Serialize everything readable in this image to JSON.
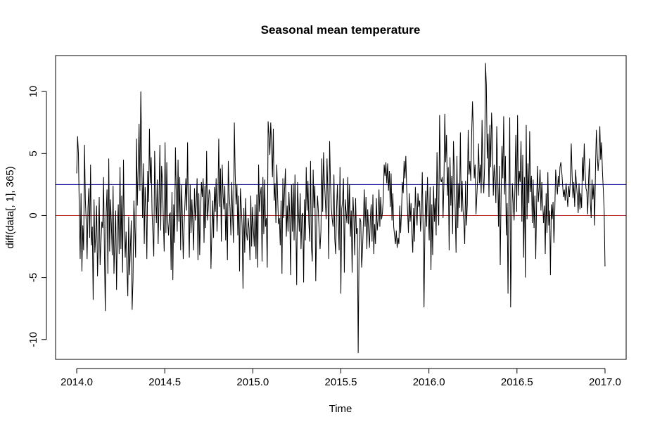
{
  "chart_data": {
    "type": "line",
    "title": "Seasonal mean temperature",
    "xlabel": "Time",
    "ylabel": "diff(data[, 1], 365)",
    "xlim": [
      2013.88,
      2017.12
    ],
    "ylim": [
      -11.6,
      12.9
    ],
    "x_ticks": [
      2014.0,
      2014.5,
      2015.0,
      2015.5,
      2016.0,
      2016.5,
      2017.0
    ],
    "x_tick_labels": [
      "2014.0",
      "2014.5",
      "2015.0",
      "2015.5",
      "2016.0",
      "2016.5",
      "2017.0"
    ],
    "y_ticks": [
      -10,
      -5,
      0,
      5,
      10
    ],
    "y_tick_labels": [
      "-10",
      "-5",
      "0",
      "5",
      "10"
    ],
    "grid": false,
    "legend": "none",
    "series": [
      {
        "color": "#000000",
        "x_start": 2014.0,
        "x_step": 0.00273973,
        "values": [
          3.4,
          6.4,
          5.0,
          0.3,
          -3.5,
          1.8,
          -4.5,
          -0.8,
          -2.8,
          5.7,
          1.2,
          -0.5,
          -3.5,
          0.6,
          2.2,
          -1.8,
          4.1,
          -2.4,
          -0.9,
          -6.8,
          1.3,
          -3.0,
          -1.5,
          0.8,
          -4.9,
          -2.0,
          1.5,
          -4.0,
          -2.2,
          -0.5,
          -1.0,
          3.1,
          -3.0,
          -7.7,
          0.2,
          2.1,
          -4.7,
          4.6,
          -2.9,
          1.3,
          -0.7,
          -3.2,
          2.4,
          -4.7,
          -2.0,
          0.4,
          -6.0,
          -1.1,
          0.9,
          -3.1,
          3.9,
          -2.7,
          1.6,
          -4.6,
          4.5,
          -1.1,
          -3.4,
          -1.3,
          -4.3,
          -6.5,
          -0.1,
          -4.8,
          -2.6,
          -0.4,
          -7.6,
          -5.2,
          1.2,
          -0.9,
          -3.4,
          6.2,
          0.8,
          3.8,
          7.4,
          2.0,
          10.0,
          5.2,
          -0.2,
          4.2,
          -2.3,
          2.3,
          0.5,
          -3.5,
          3.6,
          1.1,
          7.0,
          2.6,
          4.7,
          0.2,
          -1.5,
          -3.3,
          5.2,
          1.7,
          -0.6,
          2.9,
          -2.3,
          1.1,
          5.7,
          -1.2,
          4.0,
          2.8,
          -0.3,
          -2.9,
          5.9,
          -1.4,
          4.3,
          -0.4,
          -1.6,
          0.1,
          0.2,
          -4.4,
          1.9,
          -5.2,
          0.9,
          -2.2,
          5.5,
          1.7,
          -1.3,
          4.5,
          -0.5,
          3.1,
          -2.8,
          2.5,
          0.0,
          -3.5,
          -0.8,
          1.0,
          3.0,
          0.4,
          5.9,
          -0.1,
          -3.4,
          2.5,
          -1.4,
          1.3,
          -0.6,
          -2.8,
          2.2,
          -0.4,
          0.8,
          3.0,
          -3.6,
          1.8,
          -3.2,
          0.1,
          2.7,
          1.5,
          3.0,
          -2.2,
          2.4,
          -1.0,
          5.2,
          -0.4,
          0.8,
          2.1,
          1.7,
          -4.3,
          -1.4,
          1.2,
          -1.8,
          2.3,
          0.3,
          3.0,
          -1.3,
          1.1,
          6.2,
          0.7,
          3.8,
          -2.1,
          4.1,
          1.6,
          0.5,
          2.4,
          -2.0,
          1.0,
          -3.6,
          4.4,
          1.8,
          0.6,
          -1.6,
          2.7,
          0.1,
          -2.2,
          7.5,
          3.3,
          0.9,
          2.5,
          -1.6,
          1.6,
          -4.5,
          2.2,
          0.8,
          -0.9,
          -5.9,
          0.6,
          -3.0,
          1.4,
          -1.4,
          -2.0,
          -0.2,
          -1.1,
          -3.6,
          1.6,
          -2.5,
          0.7,
          -1.1,
          -2.5,
          0.9,
          -3.5,
          1.7,
          -4.2,
          4.1,
          0.3,
          1.7,
          2.3,
          -3.7,
          3.1,
          -1.5,
          2.9,
          -0.9,
          -0.2,
          -4.2,
          7.6,
          6.5,
          4.9,
          7.5,
          5.8,
          3.1,
          7.0,
          1.2,
          2.6,
          -0.6,
          4.1,
          1.5,
          -0.7,
          -0.2,
          -2.4,
          1.2,
          -4.7,
          3.0,
          -0.2,
          2.1,
          3.8,
          -1.7,
          0.8,
          -1.3,
          1.9,
          0.0,
          -4.8,
          2.5,
          -1.3,
          2.6,
          -2.0,
          3.3,
          -0.7,
          -5.6,
          2.7,
          0.3,
          -1.3,
          1.8,
          -2.7,
          0.0,
          0.2,
          -5.4,
          1.3,
          -2.0,
          3.9,
          0.4,
          2.8,
          -0.5,
          -2.1,
          4.4,
          -2.5,
          -3.7,
          3.7,
          0.6,
          2.4,
          -5.3,
          -1.1,
          1.6,
          0.4,
          -1.4,
          -2.7,
          -1.2,
          4.6,
          0.3,
          5.1,
          2.8,
          1.3,
          -0.3,
          4.6,
          1.7,
          -3.5,
          6.0,
          2.7,
          0.6,
          -0.3,
          -0.9,
          3.3,
          -1.9,
          -3.1,
          0.4,
          2.5,
          -0.4,
          -2.8,
          3.9,
          -6.3,
          0.5,
          1.2,
          3.0,
          -4.6,
          1.3,
          0.3,
          -0.6,
          3.1,
          -0.7,
          2.5,
          -1.7,
          0.4,
          -4.6,
          1.5,
          -0.1,
          -3.2,
          1.4,
          -1.5,
          -1.0,
          -11.1,
          -2.8,
          -0.2,
          -0.5,
          -4.2,
          -2.8,
          -0.6,
          2.1,
          -0.9,
          1.5,
          -2.7,
          0.5,
          -1.2,
          -2.6,
          -0.3,
          0.9,
          -2.1,
          1.7,
          -3.1,
          -0.7,
          -2.3,
          1.4,
          -1.2,
          -0.4,
          2.1,
          -0.9,
          1.5,
          -0.3,
          0.2,
          1.4,
          4.1,
          3.2,
          4.3,
          2.6,
          4.2,
          2.0,
          3.6,
          0.7,
          3.4,
          -0.4,
          1.8,
          -0.9,
          -1.6,
          -2.3,
          -1.2,
          -2.6,
          -1.8,
          -2.3,
          0.8,
          -1.4,
          0.3,
          2.7,
          1.8,
          4.4,
          3.0,
          4.8,
          2.2,
          0.4,
          -1.4,
          1.8,
          -0.5,
          1.0,
          -1.4,
          -3.0,
          0.6,
          -2.1,
          2.3,
          0.4,
          -0.8,
          1.8,
          0.7,
          1.2,
          -1.3,
          0.1,
          3.5,
          -1.2,
          -7.4,
          -1.2,
          2.0,
          -0.9,
          3.1,
          0.2,
          -2.0,
          2.3,
          -4.4,
          0.9,
          -3.2,
          2.4,
          -0.5,
          1.4,
          -1.6,
          5.1,
          1.4,
          -0.8,
          8.1,
          3.0,
          2.7,
          3.1,
          -0.2,
          2.7,
          8.2,
          4.3,
          6.5,
          1.6,
          3.9,
          -2.8,
          4.7,
          0.8,
          3.2,
          -1.5,
          6.0,
          3.5,
          0.5,
          -3.0,
          4.8,
          -1.0,
          2.6,
          0.6,
          6.7,
          0.3,
          2.8,
          0.5,
          -0.5,
          -2.3,
          2.8,
          -0.8,
          0.9,
          6.9,
          3.3,
          4.4,
          2.8,
          6.5,
          9.2,
          6.7,
          3.0,
          4.1,
          0.1,
          1.6,
          3.0,
          5.8,
          2.6,
          4.1,
          1.8,
          7.7,
          3.2,
          1.8,
          4.0,
          12.3,
          10.5,
          4.6,
          6.6,
          1.5,
          7.3,
          3.9,
          8.3,
          6.3,
          1.6,
          4.1,
          3.0,
          1.0,
          7.2,
          3.6,
          -0.9,
          4.0,
          -4.0,
          1.6,
          5.6,
          3.0,
          8.0,
          1.7,
          4.8,
          -1.6,
          1.0,
          -6.3,
          1.6,
          7.9,
          -7.4,
          -2.4,
          2.6,
          1.0,
          -0.4,
          2.3,
          6.5,
          0.3,
          8.1,
          1.6,
          3.6,
          2.7,
          6.0,
          -0.5,
          4.9,
          -3.4,
          3.1,
          -5.0,
          7.3,
          -0.3,
          4.2,
          1.0,
          6.8,
          1.9,
          3.2,
          -0.6,
          2.9,
          -1.0,
          1.6,
          -3.5,
          0.9,
          4.0,
          1.1,
          2.2,
          3.7,
          0.4,
          2.7,
          1.1,
          -0.6,
          0.8,
          -3.1,
          1.8,
          -1.4,
          3.5,
          -0.8,
          0.4,
          -4.8,
          0.9,
          -0.3,
          1.1,
          -2.2,
          0.4,
          3.7,
          2.6,
          1.7,
          3.2,
          2.3,
          3.9,
          4.3,
          3.6,
          2.5,
          1.5,
          2.1,
          1.2,
          2.6,
          1.7,
          0.7,
          2.4,
          1.5,
          3.0,
          5.8,
          3.2,
          1.4,
          2.7,
          0.7,
          3.7,
          2.5,
          1.6,
          0.2,
          2.6,
          0.5,
          1.8,
          0.6,
          4.7,
          2.8,
          5.8,
          3.5,
          2.2,
          1.9,
          0.1,
          2.8,
          4.6,
          1.1,
          -0.2,
          2.9,
          1.3,
          2.5,
          -0.8,
          3.8,
          6.9,
          5.0,
          3.6,
          4.6,
          7.2,
          4.5,
          5.9,
          3.6,
          2.1,
          0.4,
          -4.1
        ]
      }
    ],
    "hlines": [
      {
        "y": 2.5,
        "color": "#00008B"
      },
      {
        "y": 0,
        "color": "#B22222"
      }
    ]
  }
}
